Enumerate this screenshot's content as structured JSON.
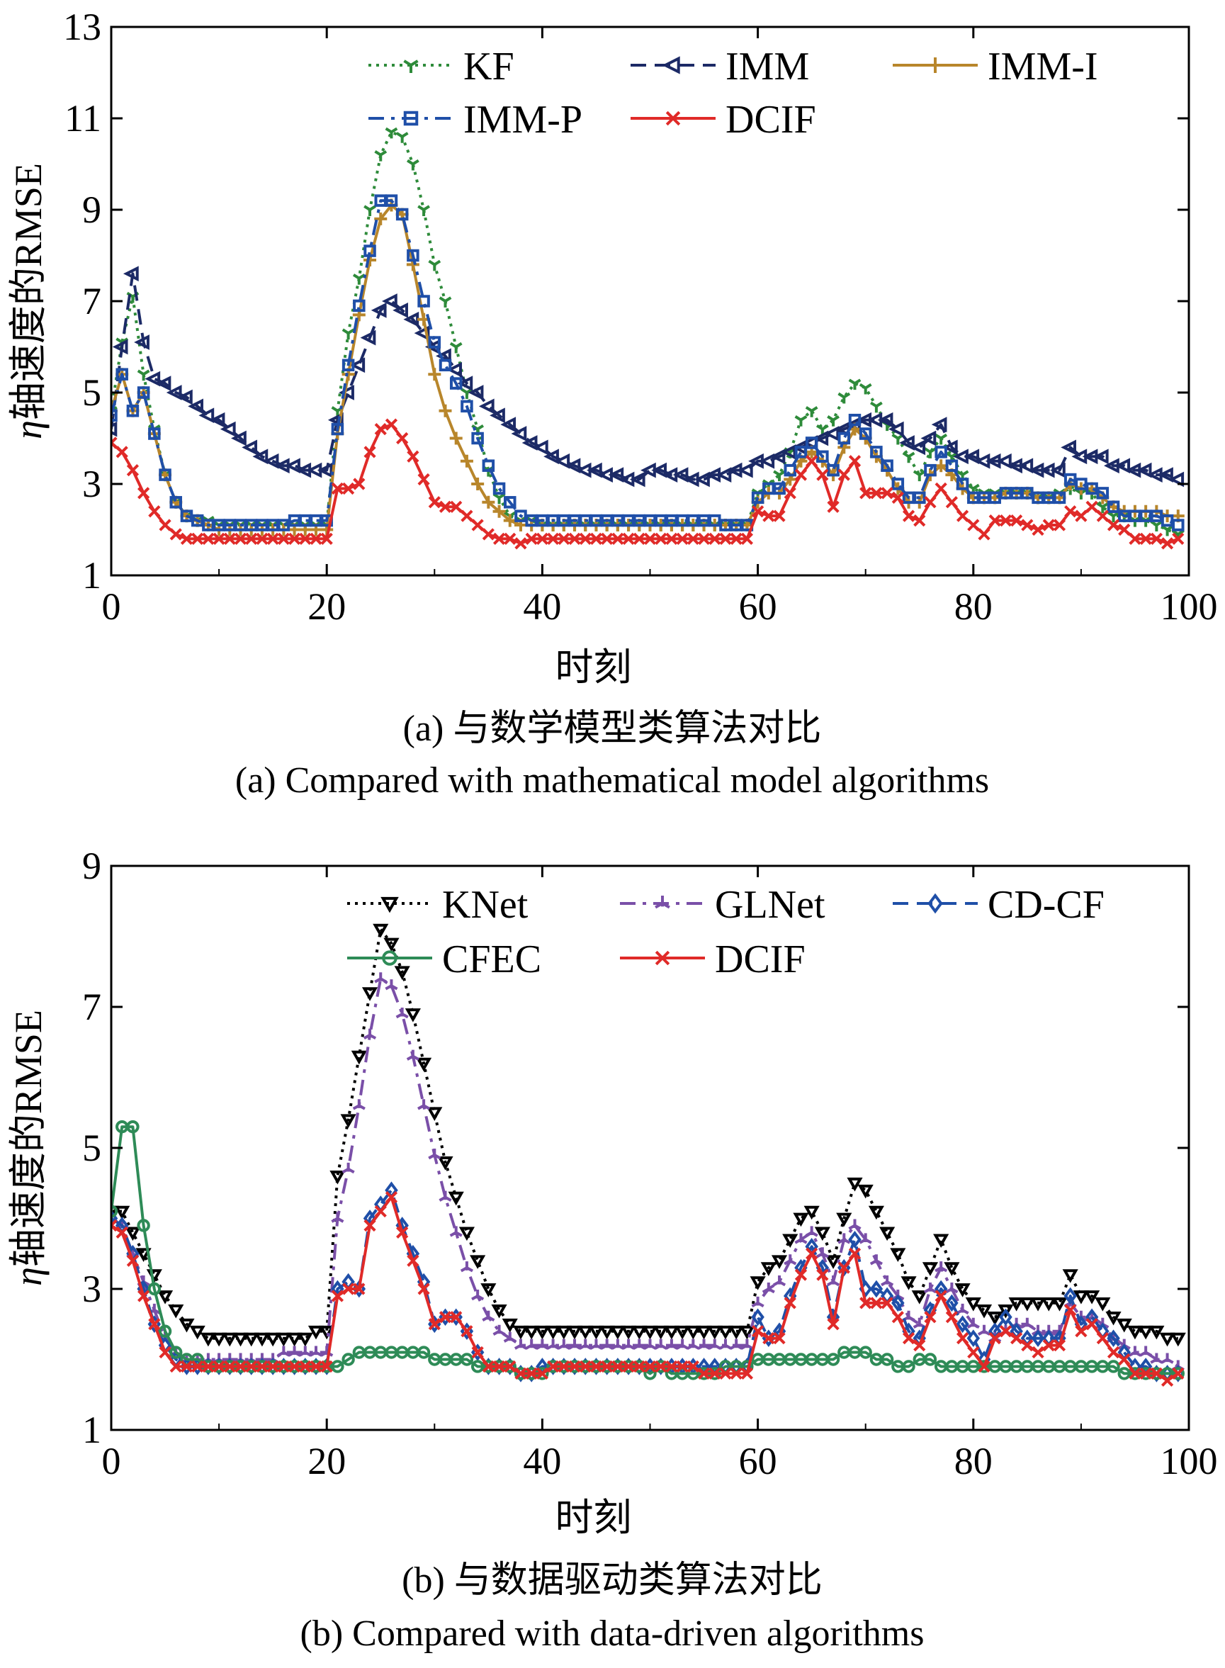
{
  "chart_data": [
    {
      "type": "line",
      "caption_zh": "(a) 与数学模型类算法对比",
      "caption_en": "(a) Compared with mathematical model algorithms",
      "xlabel": "时刻",
      "ylabel_symbol": "η",
      "ylabel_text": "轴速度的RMSE",
      "xlim": [
        0,
        100
      ],
      "ylim": [
        1,
        13
      ],
      "xticks": [
        0,
        20,
        40,
        60,
        80,
        100
      ],
      "yticks": [
        1,
        3,
        5,
        7,
        9,
        11,
        13
      ],
      "legend_placement": "top-right",
      "series": [
        {
          "name": "KF",
          "color": "#2e8b3a",
          "dash": "dotted",
          "marker": "tri-y",
          "values": [
            4.6,
            6.1,
            7.1,
            5.4,
            4.2,
            3.2,
            2.6,
            2.3,
            2.2,
            2.2,
            2.1,
            2.1,
            2.1,
            2.1,
            2.1,
            2.1,
            2.1,
            2.1,
            2.1,
            2.1,
            2.1,
            4.6,
            6.3,
            7.5,
            9.0,
            10.2,
            10.7,
            10.6,
            10.0,
            9.0,
            7.8,
            7.0,
            6.0,
            5.0,
            4.2,
            3.3,
            2.7,
            2.3,
            2.2,
            2.2,
            2.1,
            2.1,
            2.1,
            2.1,
            2.1,
            2.1,
            2.1,
            2.1,
            2.1,
            2.1,
            2.1,
            2.1,
            2.1,
            2.1,
            2.1,
            2.1,
            2.1,
            2.1,
            2.1,
            2.1,
            2.8,
            3.0,
            3.2,
            3.7,
            4.4,
            4.6,
            4.2,
            4.4,
            4.9,
            5.2,
            5.1,
            4.7,
            4.3,
            4.0,
            3.6,
            3.2,
            3.7,
            4.0,
            3.6,
            3.2,
            2.9,
            2.8,
            2.8,
            2.8,
            2.8,
            2.8,
            2.7,
            2.7,
            2.8,
            2.9,
            2.8,
            2.8,
            2.5,
            2.3,
            2.3,
            2.2,
            2.2,
            2.1,
            2.0,
            1.9
          ]
        },
        {
          "name": "IMM",
          "color": "#1c2a66",
          "dash": "dashed",
          "marker": "tri-left",
          "values": [
            4.2,
            6.0,
            7.6,
            6.1,
            5.3,
            5.2,
            5.0,
            4.9,
            4.7,
            4.5,
            4.4,
            4.2,
            4.0,
            3.8,
            3.6,
            3.5,
            3.4,
            3.4,
            3.3,
            3.3,
            3.3,
            4.4,
            5.0,
            5.6,
            6.2,
            6.8,
            7.0,
            6.8,
            6.6,
            6.3,
            6.0,
            5.8,
            5.5,
            5.2,
            5.0,
            4.7,
            4.5,
            4.3,
            4.1,
            3.9,
            3.8,
            3.6,
            3.5,
            3.4,
            3.3,
            3.3,
            3.2,
            3.2,
            3.1,
            3.1,
            3.3,
            3.3,
            3.2,
            3.2,
            3.1,
            3.1,
            3.2,
            3.2,
            3.3,
            3.3,
            3.5,
            3.5,
            3.6,
            3.7,
            3.8,
            3.9,
            4.0,
            4.1,
            4.2,
            4.3,
            4.4,
            4.4,
            4.4,
            4.2,
            3.9,
            3.8,
            4.0,
            4.3,
            3.8,
            3.6,
            3.6,
            3.5,
            3.5,
            3.5,
            3.4,
            3.4,
            3.3,
            3.3,
            3.3,
            3.8,
            3.6,
            3.6,
            3.6,
            3.4,
            3.4,
            3.3,
            3.3,
            3.2,
            3.2,
            3.1
          ]
        },
        {
          "name": "IMM-I",
          "color": "#b8862b",
          "dash": "solid",
          "marker": "plus",
          "values": [
            4.6,
            5.4,
            4.6,
            5.0,
            4.1,
            3.2,
            2.6,
            2.3,
            2.2,
            2.1,
            2.0,
            2.0,
            2.0,
            2.0,
            2.0,
            2.0,
            2.0,
            2.0,
            2.0,
            2.0,
            2.0,
            4.1,
            5.4,
            6.7,
            7.9,
            8.8,
            9.1,
            8.9,
            7.8,
            6.6,
            5.4,
            4.6,
            4.0,
            3.5,
            3.0,
            2.6,
            2.4,
            2.2,
            2.1,
            2.1,
            2.1,
            2.1,
            2.1,
            2.1,
            2.1,
            2.1,
            2.1,
            2.1,
            2.1,
            2.1,
            2.1,
            2.1,
            2.1,
            2.1,
            2.1,
            2.1,
            2.1,
            2.1,
            2.1,
            2.1,
            2.6,
            2.8,
            2.8,
            3.1,
            3.5,
            3.7,
            3.5,
            3.2,
            3.8,
            4.2,
            4.0,
            3.6,
            3.3,
            2.9,
            2.6,
            2.6,
            3.2,
            3.4,
            3.2,
            2.9,
            2.7,
            2.7,
            2.7,
            2.8,
            2.8,
            2.8,
            2.7,
            2.7,
            2.7,
            3.0,
            2.9,
            2.9,
            2.7,
            2.5,
            2.4,
            2.4,
            2.4,
            2.4,
            2.3,
            2.3
          ]
        },
        {
          "name": "IMM-P",
          "color": "#1f4fa8",
          "dash": "dashdot",
          "marker": "square",
          "values": [
            4.5,
            5.4,
            4.6,
            5.0,
            4.1,
            3.2,
            2.6,
            2.3,
            2.2,
            2.1,
            2.1,
            2.1,
            2.1,
            2.1,
            2.1,
            2.1,
            2.1,
            2.2,
            2.2,
            2.2,
            2.2,
            4.2,
            5.6,
            6.9,
            8.1,
            9.2,
            9.2,
            8.9,
            8.0,
            7.0,
            6.1,
            5.6,
            5.2,
            4.7,
            4.0,
            3.4,
            2.9,
            2.6,
            2.3,
            2.2,
            2.2,
            2.2,
            2.2,
            2.2,
            2.2,
            2.2,
            2.2,
            2.2,
            2.2,
            2.2,
            2.2,
            2.2,
            2.2,
            2.2,
            2.2,
            2.2,
            2.2,
            2.1,
            2.1,
            2.1,
            2.7,
            2.9,
            2.9,
            3.3,
            3.7,
            3.9,
            3.6,
            3.3,
            4.0,
            4.4,
            4.1,
            3.7,
            3.4,
            3.0,
            2.7,
            2.7,
            3.3,
            3.7,
            3.4,
            3.0,
            2.7,
            2.7,
            2.7,
            2.8,
            2.8,
            2.8,
            2.7,
            2.7,
            2.7,
            3.1,
            3.0,
            2.9,
            2.8,
            2.5,
            2.3,
            2.3,
            2.3,
            2.3,
            2.2,
            2.1
          ]
        },
        {
          "name": "DCIF",
          "color": "#e02a28",
          "dash": "solid",
          "marker": "cross",
          "values": [
            3.9,
            3.7,
            3.3,
            2.8,
            2.4,
            2.1,
            1.9,
            1.8,
            1.8,
            1.8,
            1.8,
            1.8,
            1.8,
            1.8,
            1.8,
            1.8,
            1.8,
            1.8,
            1.8,
            1.8,
            1.8,
            2.9,
            2.9,
            3.0,
            3.7,
            4.2,
            4.3,
            4.0,
            3.6,
            3.1,
            2.6,
            2.5,
            2.5,
            2.3,
            2.1,
            1.9,
            1.8,
            1.8,
            1.7,
            1.8,
            1.8,
            1.8,
            1.8,
            1.8,
            1.8,
            1.8,
            1.8,
            1.8,
            1.8,
            1.8,
            1.8,
            1.8,
            1.8,
            1.8,
            1.8,
            1.8,
            1.8,
            1.8,
            1.8,
            1.8,
            2.4,
            2.3,
            2.3,
            2.8,
            3.2,
            3.5,
            3.2,
            2.5,
            3.2,
            3.5,
            2.8,
            2.8,
            2.8,
            2.7,
            2.3,
            2.2,
            2.6,
            2.9,
            2.6,
            2.3,
            2.1,
            1.9,
            2.2,
            2.2,
            2.2,
            2.1,
            2.0,
            2.1,
            2.1,
            2.4,
            2.3,
            2.5,
            2.3,
            2.1,
            2.0,
            1.8,
            1.8,
            1.8,
            1.7,
            1.8
          ]
        }
      ]
    },
    {
      "type": "line",
      "caption_zh": "(b) 与数据驱动类算法对比",
      "caption_en": "(b) Compared with data-driven algorithms",
      "xlabel": "时刻",
      "ylabel_symbol": "η",
      "ylabel_text": "轴速度的RMSE",
      "xlim": [
        0,
        100
      ],
      "ylim": [
        1,
        9
      ],
      "xticks": [
        0,
        20,
        40,
        60,
        80,
        100
      ],
      "yticks": [
        1,
        3,
        5,
        7,
        9
      ],
      "legend_placement": "top-right",
      "series": [
        {
          "name": "KNet",
          "color": "#000000",
          "dash": "dotted",
          "marker": "tri-down",
          "values": [
            4.1,
            4.1,
            3.8,
            3.5,
            3.2,
            2.9,
            2.7,
            2.5,
            2.4,
            2.3,
            2.3,
            2.3,
            2.3,
            2.3,
            2.3,
            2.3,
            2.3,
            2.3,
            2.3,
            2.4,
            2.4,
            4.6,
            5.4,
            6.3,
            7.2,
            8.1,
            7.9,
            7.5,
            6.9,
            6.2,
            5.5,
            4.8,
            4.3,
            3.8,
            3.4,
            3.0,
            2.7,
            2.5,
            2.4,
            2.4,
            2.4,
            2.4,
            2.4,
            2.4,
            2.4,
            2.4,
            2.4,
            2.4,
            2.4,
            2.4,
            2.4,
            2.4,
            2.4,
            2.4,
            2.4,
            2.4,
            2.4,
            2.4,
            2.4,
            2.4,
            3.1,
            3.3,
            3.4,
            3.7,
            4.0,
            4.1,
            3.8,
            3.4,
            4.0,
            4.5,
            4.4,
            4.1,
            3.8,
            3.5,
            3.1,
            2.9,
            3.3,
            3.7,
            3.3,
            3.0,
            2.8,
            2.7,
            2.6,
            2.7,
            2.8,
            2.8,
            2.8,
            2.8,
            2.8,
            3.2,
            2.9,
            2.9,
            2.8,
            2.6,
            2.5,
            2.4,
            2.4,
            2.4,
            2.3,
            2.3
          ]
        },
        {
          "name": "GLNet",
          "color": "#7a4fa8",
          "dash": "dashdot",
          "marker": "star",
          "values": [
            4.0,
            3.9,
            3.5,
            3.1,
            2.7,
            2.3,
            2.1,
            2.0,
            2.0,
            2.0,
            2.0,
            2.0,
            2.0,
            2.0,
            2.0,
            2.0,
            2.1,
            2.1,
            2.1,
            2.1,
            2.1,
            4.0,
            4.7,
            5.6,
            6.6,
            7.4,
            7.3,
            6.9,
            6.3,
            5.6,
            4.9,
            4.3,
            3.8,
            3.3,
            2.9,
            2.6,
            2.4,
            2.3,
            2.2,
            2.2,
            2.2,
            2.2,
            2.2,
            2.2,
            2.2,
            2.2,
            2.2,
            2.2,
            2.2,
            2.2,
            2.2,
            2.2,
            2.2,
            2.2,
            2.2,
            2.2,
            2.2,
            2.2,
            2.2,
            2.2,
            2.8,
            3.0,
            3.1,
            3.4,
            3.7,
            3.8,
            3.5,
            3.1,
            3.7,
            3.9,
            3.7,
            3.4,
            3.1,
            2.9,
            2.6,
            2.5,
            3.0,
            3.3,
            3.0,
            2.7,
            2.5,
            2.4,
            2.3,
            2.4,
            2.5,
            2.5,
            2.4,
            2.4,
            2.4,
            2.8,
            2.6,
            2.6,
            2.5,
            2.3,
            2.2,
            2.1,
            2.1,
            2.0,
            2.0,
            1.9
          ]
        },
        {
          "name": "CD-CF",
          "color": "#1f4fa8",
          "dash": "dashed",
          "marker": "diamond",
          "values": [
            4.0,
            3.9,
            3.5,
            3.0,
            2.5,
            2.2,
            2.0,
            1.9,
            1.9,
            1.9,
            1.9,
            1.9,
            1.9,
            1.9,
            1.9,
            1.9,
            1.9,
            1.9,
            1.9,
            1.9,
            1.9,
            3.0,
            3.1,
            3.0,
            4.0,
            4.2,
            4.4,
            3.9,
            3.5,
            3.1,
            2.5,
            2.6,
            2.6,
            2.4,
            2.1,
            1.9,
            1.9,
            1.9,
            1.8,
            1.8,
            1.9,
            1.9,
            1.9,
            1.9,
            1.9,
            1.9,
            1.9,
            1.9,
            1.9,
            1.9,
            1.9,
            1.9,
            1.9,
            1.9,
            1.9,
            1.9,
            1.9,
            1.9,
            1.9,
            1.9,
            2.6,
            2.3,
            2.4,
            2.9,
            3.3,
            3.6,
            3.3,
            2.6,
            3.3,
            3.7,
            3.0,
            3.0,
            2.9,
            2.8,
            2.4,
            2.3,
            2.7,
            3.0,
            2.8,
            2.5,
            2.3,
            2.0,
            2.4,
            2.6,
            2.4,
            2.3,
            2.3,
            2.3,
            2.3,
            2.9,
            2.5,
            2.6,
            2.4,
            2.3,
            2.1,
            1.9,
            1.9,
            1.8,
            1.8,
            1.8
          ]
        },
        {
          "name": "CFEC",
          "color": "#2e8b57",
          "dash": "solid",
          "marker": "circle",
          "values": [
            4.1,
            5.3,
            5.3,
            3.9,
            3.0,
            2.4,
            2.1,
            2.0,
            2.0,
            1.9,
            1.9,
            1.9,
            1.9,
            1.9,
            1.9,
            1.9,
            1.9,
            1.9,
            1.9,
            1.9,
            1.9,
            1.9,
            2.0,
            2.1,
            2.1,
            2.1,
            2.1,
            2.1,
            2.1,
            2.1,
            2.0,
            2.0,
            2.0,
            2.0,
            1.9,
            1.9,
            1.9,
            1.9,
            1.8,
            1.8,
            1.8,
            1.9,
            1.9,
            1.9,
            1.9,
            1.9,
            1.9,
            1.9,
            1.9,
            1.9,
            1.8,
            1.9,
            1.8,
            1.8,
            1.8,
            1.8,
            1.8,
            1.9,
            1.9,
            1.9,
            2.0,
            2.0,
            2.0,
            2.0,
            2.0,
            2.0,
            2.0,
            2.0,
            2.1,
            2.1,
            2.1,
            2.0,
            2.0,
            1.9,
            1.9,
            2.0,
            2.0,
            1.9,
            1.9,
            1.9,
            1.9,
            1.9,
            1.9,
            1.9,
            1.9,
            1.9,
            1.9,
            1.9,
            1.9,
            1.9,
            1.9,
            1.9,
            1.9,
            1.9,
            1.8,
            1.8,
            1.8,
            1.8,
            1.8,
            1.8
          ]
        },
        {
          "name": "DCIF",
          "color": "#e02a28",
          "dash": "solid",
          "marker": "cross",
          "values": [
            3.9,
            3.8,
            3.4,
            2.9,
            2.5,
            2.1,
            1.9,
            1.9,
            1.9,
            1.9,
            1.9,
            1.9,
            1.9,
            1.9,
            1.9,
            1.9,
            1.9,
            1.9,
            1.9,
            1.9,
            1.9,
            2.9,
            3.0,
            3.0,
            3.9,
            4.1,
            4.3,
            3.8,
            3.4,
            3.0,
            2.5,
            2.6,
            2.6,
            2.4,
            2.1,
            1.9,
            1.9,
            1.9,
            1.8,
            1.8,
            1.8,
            1.9,
            1.9,
            1.9,
            1.9,
            1.9,
            1.9,
            1.9,
            1.9,
            1.9,
            1.9,
            1.9,
            1.9,
            1.9,
            1.9,
            1.8,
            1.8,
            1.8,
            1.8,
            1.8,
            2.4,
            2.3,
            2.3,
            2.8,
            3.2,
            3.5,
            3.2,
            2.5,
            3.3,
            3.5,
            2.8,
            2.8,
            2.8,
            2.6,
            2.3,
            2.2,
            2.6,
            2.9,
            2.6,
            2.3,
            2.1,
            1.9,
            2.3,
            2.4,
            2.3,
            2.2,
            2.1,
            2.2,
            2.2,
            2.7,
            2.4,
            2.5,
            2.3,
            2.1,
            2.0,
            1.8,
            1.8,
            1.8,
            1.7,
            1.8
          ]
        }
      ]
    }
  ]
}
